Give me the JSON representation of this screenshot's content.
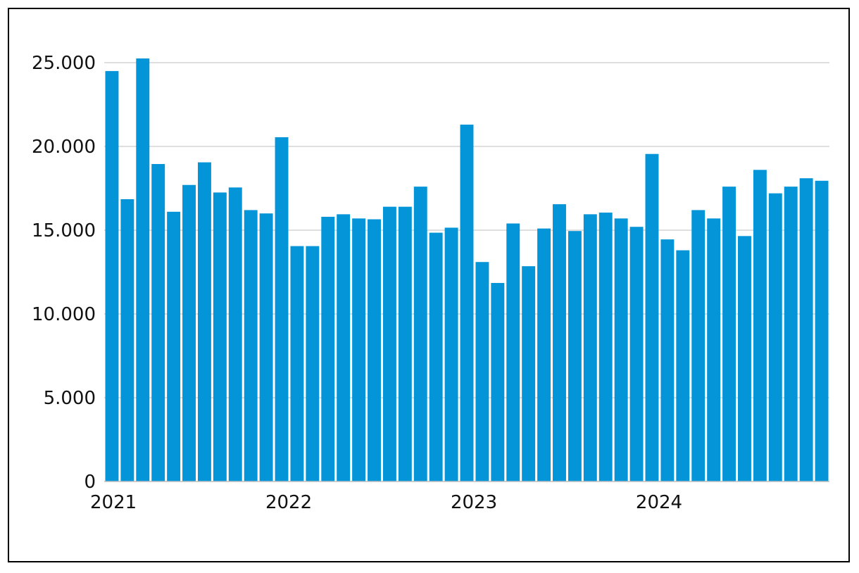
{
  "chart_data": {
    "type": "bar",
    "color": "#0495d9",
    "gridline_color": "#bfbfbf",
    "grid": true,
    "ylim": [
      0,
      25000
    ],
    "y_ticks": [
      {
        "value": 0,
        "label": "0"
      },
      {
        "value": 5000,
        "label": "5.000"
      },
      {
        "value": 10000,
        "label": "10.000"
      },
      {
        "value": 15000,
        "label": "15.000"
      },
      {
        "value": 20000,
        "label": "20.000"
      },
      {
        "value": 25000,
        "label": "25.000"
      }
    ],
    "x_ticks": [
      {
        "index": 0,
        "label": "2021"
      },
      {
        "index": 12,
        "label": "2022"
      },
      {
        "index": 24,
        "label": "2023"
      },
      {
        "index": 36,
        "label": "2024"
      }
    ],
    "values": [
      24500,
      16850,
      25250,
      18950,
      16100,
      17700,
      19050,
      17250,
      17550,
      16200,
      16000,
      20550,
      14050,
      14050,
      15800,
      15950,
      15700,
      15650,
      16400,
      16400,
      17600,
      14850,
      15150,
      21300,
      13100,
      11850,
      15400,
      12850,
      15100,
      16550,
      14950,
      15950,
      16050,
      15700,
      15200,
      19550,
      14450,
      13800,
      16200,
      15700,
      17600,
      14650,
      18600,
      17200,
      17600,
      18100,
      17950
    ]
  }
}
